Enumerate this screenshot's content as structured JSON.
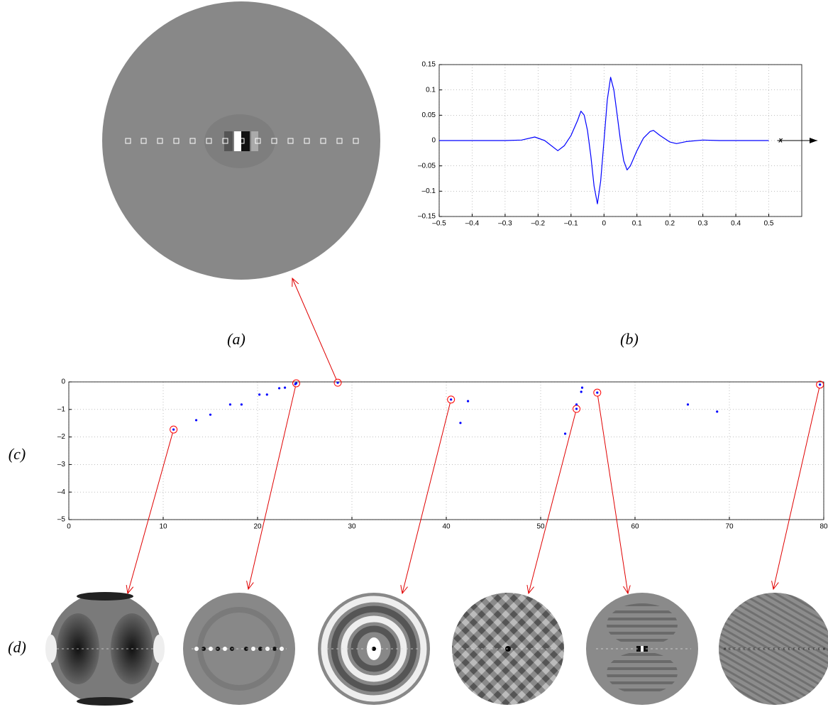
{
  "panel_labels": [
    "(a)",
    "(b)",
    "(c)",
    "(d)"
  ],
  "chart_data": [
    {
      "type": "line",
      "color": "#0000ff",
      "grid": true,
      "axis_label": "x",
      "x": [
        -0.5,
        -0.3,
        -0.25,
        -0.21,
        -0.18,
        -0.14,
        -0.12,
        -0.1,
        -0.08,
        -0.07,
        -0.06,
        -0.05,
        -0.04,
        -0.03,
        -0.02,
        -0.01,
        0,
        0.01,
        0.02,
        0.03,
        0.04,
        0.05,
        0.06,
        0.07,
        0.08,
        0.1,
        0.12,
        0.14,
        0.15,
        0.17,
        0.2,
        0.22,
        0.25,
        0.3,
        0.35,
        0.5
      ],
      "values": [
        0,
        0,
        0.001,
        0.007,
        0,
        -0.02,
        -0.01,
        0.01,
        0.04,
        0.058,
        0.05,
        0.02,
        -0.03,
        -0.09,
        -0.125,
        -0.08,
        0,
        0.08,
        0.125,
        0.1,
        0.05,
        0,
        -0.04,
        -0.058,
        -0.05,
        -0.02,
        0.005,
        0.018,
        0.02,
        0.01,
        -0.003,
        -0.006,
        -0.002,
        0.001,
        0,
        0
      ],
      "xlim": [
        -0.5,
        0.6
      ],
      "xticks": [
        {
          "value": -0.5,
          "label": "–0.5"
        },
        {
          "value": -0.4,
          "label": "–0.4"
        },
        {
          "value": -0.3,
          "label": "–0.3"
        },
        {
          "value": -0.2,
          "label": "–0.2"
        },
        {
          "value": -0.1,
          "label": "–0.1"
        },
        0,
        0.1,
        0.2,
        0.3,
        0.4,
        0.5
      ],
      "ylim": [
        -0.15,
        0.15
      ],
      "yticks": [
        {
          "value": -0.15,
          "label": "–0.15"
        },
        {
          "value": -0.1,
          "label": "–0.1"
        },
        {
          "value": -0.05,
          "label": "–0.05"
        },
        0,
        0.05,
        0.1,
        0.15
      ]
    },
    {
      "type": "scatter",
      "color": "#0000ff",
      "highlight_color": "#ff0000",
      "grid": true,
      "x": [
        11.1,
        13.5,
        15.0,
        17.1,
        18.3,
        20.2,
        21.0,
        22.3,
        22.9,
        24.0,
        24.1,
        28.5,
        40.5,
        41.5,
        42.3,
        52.6,
        53.8,
        53.8,
        54.3,
        54.4,
        56.0,
        65.6,
        68.7,
        79.6
      ],
      "values": [
        -1.73,
        -1.39,
        -1.19,
        -0.82,
        -0.82,
        -0.46,
        -0.46,
        -0.23,
        -0.21,
        -0.08,
        -0.05,
        -0.03,
        -0.64,
        -1.49,
        -0.7,
        -1.88,
        -0.98,
        -0.82,
        -0.36,
        -0.21,
        -0.39,
        -0.82,
        -1.08,
        -0.1
      ],
      "highlight": [
        true,
        false,
        false,
        false,
        false,
        false,
        false,
        false,
        false,
        false,
        true,
        true,
        true,
        false,
        false,
        false,
        true,
        false,
        false,
        false,
        true,
        false,
        false,
        true
      ],
      "xlim": [
        0,
        80
      ],
      "xticks": [
        0,
        10,
        20,
        30,
        40,
        50,
        60,
        70,
        80
      ],
      "ylim": [
        -5,
        0
      ],
      "yticks": [
        {
          "value": -5,
          "label": "–5"
        },
        {
          "value": -4,
          "label": "–4"
        },
        {
          "value": -3,
          "label": "–3"
        },
        {
          "value": -2,
          "label": "–2"
        },
        {
          "value": -1,
          "label": "–1"
        },
        0
      ]
    }
  ]
}
